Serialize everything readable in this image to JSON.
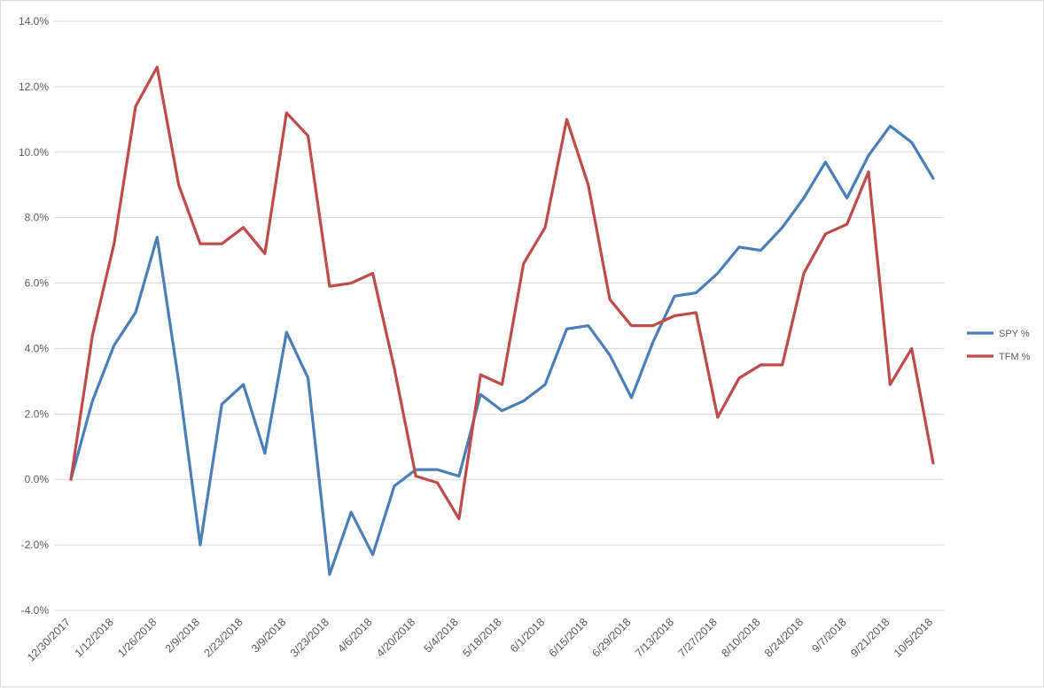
{
  "chart_data": {
    "type": "line",
    "title": "",
    "xlabel": "",
    "ylabel": "",
    "ylim": [
      -4.0,
      14.0
    ],
    "ytick_step": 2.0,
    "grid": "horizontal",
    "legend_position": "right",
    "x": [
      "12/30/2017",
      "1/5/2018",
      "1/12/2018",
      "1/19/2018",
      "1/26/2018",
      "2/2/2018",
      "2/9/2018",
      "2/16/2018",
      "2/23/2018",
      "3/2/2018",
      "3/9/2018",
      "3/16/2018",
      "3/23/2018",
      "3/30/2018",
      "4/6/2018",
      "4/13/2018",
      "4/20/2018",
      "4/27/2018",
      "5/4/2018",
      "5/11/2018",
      "5/18/2018",
      "5/25/2018",
      "6/1/2018",
      "6/8/2018",
      "6/15/2018",
      "6/22/2018",
      "6/29/2018",
      "7/6/2018",
      "7/13/2018",
      "7/20/2018",
      "7/27/2018",
      "8/3/2018",
      "8/10/2018",
      "8/17/2018",
      "8/24/2018",
      "8/31/2018",
      "9/7/2018",
      "9/14/2018",
      "9/21/2018",
      "9/28/2018",
      "10/5/2018"
    ],
    "x_tick_labels": [
      "12/30/2017",
      "1/12/2018",
      "1/26/2018",
      "2/9/2018",
      "2/23/2018",
      "3/9/2018",
      "3/23/2018",
      "4/6/2018",
      "4/20/2018",
      "5/4/2018",
      "5/18/2018",
      "6/1/2018",
      "6/15/2018",
      "6/29/2018",
      "7/13/2018",
      "7/27/2018",
      "8/10/2018",
      "8/24/2018",
      "9/7/2018",
      "9/21/2018",
      "10/5/2018"
    ],
    "series": [
      {
        "name": "SPY %",
        "color": "#4a7ebb",
        "values": [
          0.0,
          2.4,
          4.1,
          5.1,
          7.4,
          3.0,
          -2.0,
          2.3,
          2.9,
          0.8,
          4.5,
          3.1,
          -2.9,
          -1.0,
          -2.3,
          -0.2,
          0.3,
          0.3,
          0.1,
          2.6,
          2.1,
          2.4,
          2.9,
          4.6,
          4.7,
          3.8,
          2.5,
          4.2,
          5.6,
          5.7,
          6.3,
          7.1,
          7.0,
          7.7,
          8.6,
          9.7,
          8.6,
          9.9,
          10.8,
          10.3,
          9.2
        ]
      },
      {
        "name": "TFM %",
        "color": "#be4b48",
        "values": [
          0.0,
          4.4,
          7.2,
          11.4,
          12.6,
          9.0,
          7.2,
          7.2,
          7.7,
          6.9,
          11.2,
          10.5,
          5.9,
          6.0,
          6.3,
          3.4,
          0.1,
          -0.1,
          -1.2,
          3.2,
          2.9,
          6.6,
          7.7,
          11.0,
          9.0,
          5.5,
          4.7,
          4.7,
          5.0,
          5.1,
          1.9,
          3.1,
          3.5,
          3.5,
          6.3,
          7.5,
          7.8,
          9.4,
          2.9,
          4.0,
          0.5
        ]
      }
    ]
  }
}
